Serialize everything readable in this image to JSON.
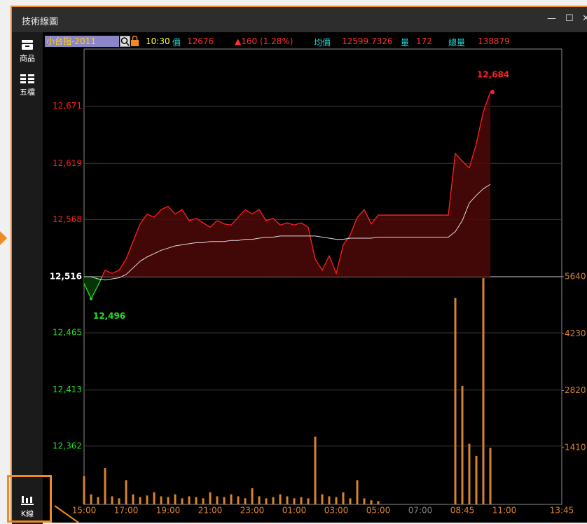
{
  "window": {
    "title": "技術線圖"
  },
  "sidebar": [
    {
      "label": "商品"
    },
    {
      "label": "五檔"
    },
    {
      "label": "K線"
    }
  ],
  "quote": {
    "symbol": "小台指-2011",
    "time": "10:30",
    "price_label": "價",
    "price": 12676,
    "change": "▲160 (1.28%)",
    "avg_label": "均價",
    "avg": 12599.7326,
    "vol_label": "量",
    "volume": 172,
    "total_label": "總量",
    "total": 138879
  },
  "chart_data": {
    "type": "line",
    "xticks": [
      "15:00",
      "17:00",
      "19:00",
      "21:00",
      "23:00",
      "01:00",
      "03:00",
      "05:00",
      "07:00",
      "08:45",
      "11:00",
      "13:45"
    ],
    "xtick_color": "#d9822b",
    "closed_xtick_color": "#808080",
    "closed_xticks": [
      8
    ],
    "ylim": [
      12309,
      12723
    ],
    "yticks": [
      {
        "value": 12671,
        "label": "12,671"
      },
      {
        "value": 12619,
        "label": "12,619"
      },
      {
        "value": 12568,
        "label": "12,568"
      },
      {
        "value": 12516,
        "label": "12,516"
      },
      {
        "value": 12465,
        "label": "12,465"
      },
      {
        "value": 12413,
        "label": "12,413"
      },
      {
        "value": 12362,
        "label": "12,362"
      }
    ],
    "reference_tick": 3,
    "up_color": "#ff2020",
    "down_color": "#22dd22",
    "grid": true,
    "y2lim": [
      0,
      11280
    ],
    "y2ticks": [
      5640,
      4230,
      2820,
      1410
    ],
    "series": [
      {
        "color": "#ff2020",
        "values": [
          12510,
          12496,
          12508,
          12522,
          12519,
          12522,
          12532,
          12548,
          12564,
          12573,
          12570,
          12577,
          12580,
          12573,
          12577,
          12567,
          12569,
          12565,
          12561,
          12567,
          12564,
          12563,
          12570,
          12577,
          12573,
          12577,
          12567,
          12569,
          12563,
          12565,
          12563,
          12565,
          12561,
          12532,
          12522,
          12535,
          12519,
          12545,
          12554,
          12570,
          12577,
          12564,
          12572,
          12572,
          12572,
          12572,
          12572,
          12572,
          12572,
          12572,
          12572,
          12572,
          12572,
          12628,
          12621,
          12615,
          12637,
          12666,
          12684
        ]
      },
      {
        "color": "#dddddd",
        "values": [
          12516,
          12516,
          12514,
          12513,
          12514,
          12515,
          12518,
          12524,
          12530,
          12534,
          12537,
          12540,
          12542,
          12544,
          12545,
          12546,
          12547,
          12547,
          12548,
          12548,
          12548,
          12549,
          12549,
          12550,
          12550,
          12551,
          12552,
          12552,
          12553,
          12553,
          12553,
          12553,
          12553,
          12553,
          12552,
          12551,
          12550,
          12550,
          12551,
          12551,
          12551,
          12551,
          12552,
          12552,
          12552,
          12552,
          12552,
          12552,
          12552,
          12552,
          12552,
          12552,
          12552,
          12557,
          12567,
          12583,
          12590,
          12596,
          12600
        ]
      },
      {
        "color": "#d9822b",
        "axis": "y2",
        "values": [
          700,
          250,
          180,
          900,
          200,
          150,
          600,
          250,
          180,
          220,
          300,
          200,
          180,
          250,
          150,
          200,
          180,
          150,
          300,
          200,
          180,
          250,
          200,
          150,
          400,
          200,
          150,
          180,
          250,
          200,
          150,
          180,
          150,
          1676,
          250,
          200,
          180,
          300,
          150,
          600,
          150,
          100,
          80,
          0,
          0,
          0,
          0,
          0,
          0,
          0,
          0,
          0,
          0,
          5116,
          2933,
          1500,
          1200,
          5605,
          1400
        ]
      }
    ],
    "high": {
      "value": 12684,
      "label": "12,684"
    },
    "low": {
      "value": 12496,
      "label": "12,496"
    }
  }
}
